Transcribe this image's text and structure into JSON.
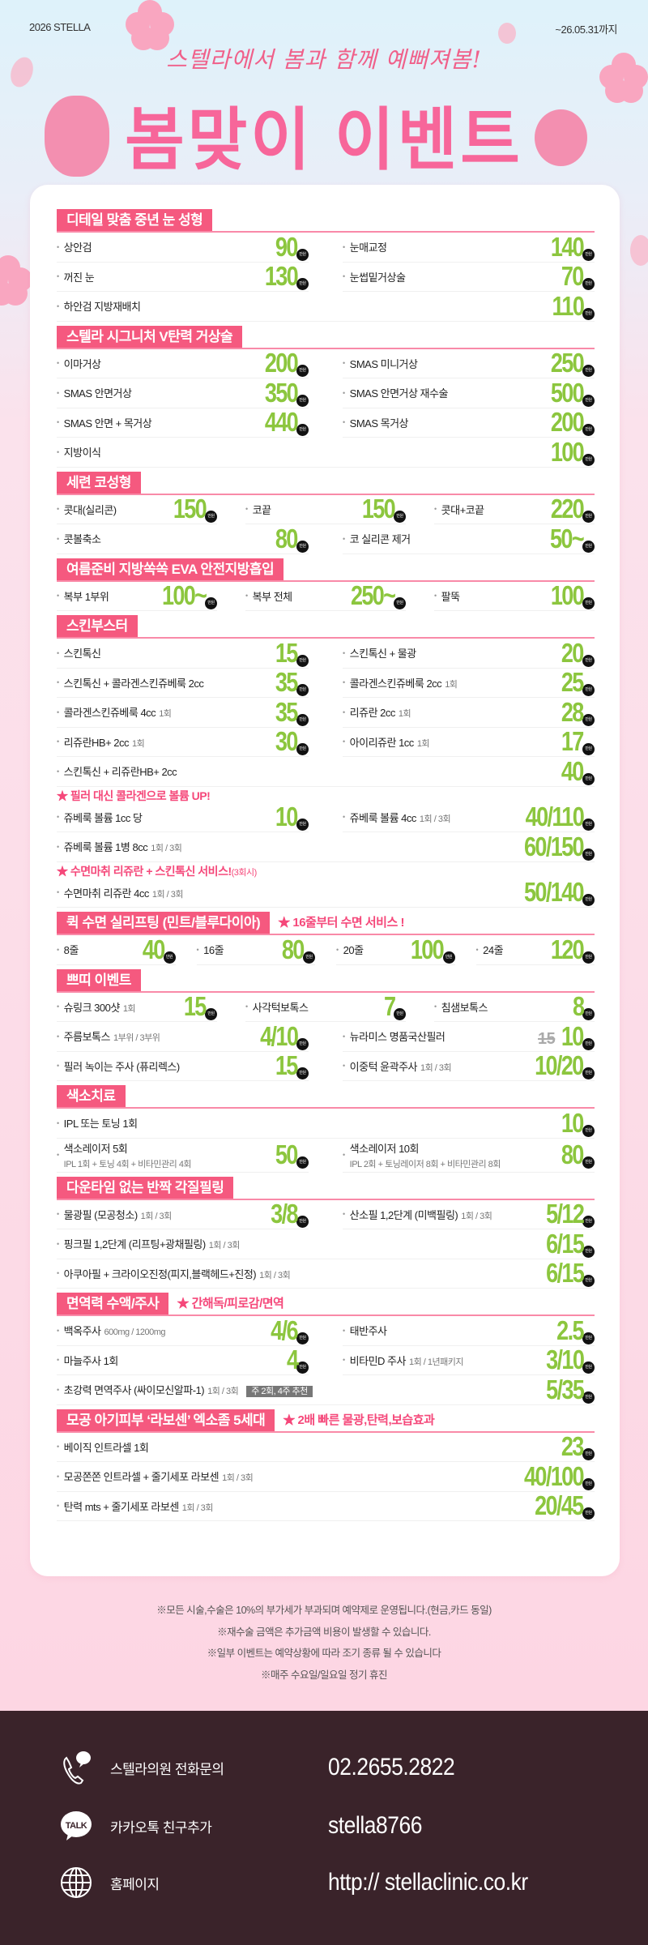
{
  "header": {
    "brand": "2026 STELLA",
    "period": "~26.05.31까지",
    "script": "스텔라에서 봄과 함께 예뻐져봄!",
    "title": "봄맞이 이벤트"
  },
  "unit": "만원",
  "colors": {
    "accent": "#f5597f",
    "price": "#8cc63e",
    "footer": "#3a232a"
  },
  "sections": [
    {
      "title": "디테일 맞춤 중년 눈 성형",
      "blocks": [
        {
          "cols": 2,
          "items": [
            {
              "label": "상안검",
              "price": "90"
            },
            {
              "label": "눈매교정",
              "price": "140"
            },
            {
              "label": "꺼진 눈",
              "price": "130"
            },
            {
              "label": "눈썹밑거상술",
              "price": "70"
            },
            {
              "label": "하안검 지방재배치",
              "price": "110",
              "full": true
            }
          ]
        }
      ]
    },
    {
      "title": "스텔라 시그니처 V탄력 거상술",
      "blocks": [
        {
          "cols": 2,
          "items": [
            {
              "label": "이마거상",
              "price": "200"
            },
            {
              "label": "SMAS 미니거상",
              "price": "250"
            },
            {
              "label": "SMAS 안면거상",
              "price": "350"
            },
            {
              "label": "SMAS 안면거상 재수술",
              "price": "500"
            },
            {
              "label": "SMAS 안면 + 목거상",
              "price": "440"
            },
            {
              "label": "SMAS 목거상",
              "price": "200"
            },
            {
              "label": "지방이식",
              "price": "100",
              "full": true
            }
          ]
        }
      ]
    },
    {
      "title": "세련 코성형",
      "blocks": [
        {
          "cols": 3,
          "items": [
            {
              "label": "콧대(실리콘)",
              "price": "150"
            },
            {
              "label": "코끝",
              "price": "150"
            },
            {
              "label": "콧대+코끝",
              "price": "220"
            }
          ]
        },
        {
          "cols": 2,
          "items": [
            {
              "label": "콧볼축소",
              "price": "80"
            },
            {
              "label": "코 실리콘 제거",
              "price": "50~"
            }
          ]
        }
      ]
    },
    {
      "title": "여름준비 지방쏙쏙 EVA 안전지방흡입",
      "blocks": [
        {
          "cols": 3,
          "items": [
            {
              "label": "복부 1부위",
              "price": "100~"
            },
            {
              "label": "복부 전체",
              "price": "250~"
            },
            {
              "label": "팔뚝",
              "price": "100"
            }
          ]
        }
      ]
    },
    {
      "title": "스킨부스터",
      "blocks": [
        {
          "cols": 2,
          "items": [
            {
              "label": "스킨톡신",
              "price": "15"
            },
            {
              "label": "스킨톡신 + 물광",
              "price": "20"
            },
            {
              "label": "스킨톡신 + 콜라겐스킨쥬베룩 2cc",
              "price": "35"
            },
            {
              "label": "콜라겐스킨쥬베룩 2cc",
              "sub": "1회",
              "price": "25"
            },
            {
              "label": "콜라겐스킨쥬베룩 4cc",
              "sub": "1회",
              "price": "35"
            },
            {
              "label": "리쥬란 2cc",
              "sub": "1회",
              "price": "28"
            },
            {
              "label": "리쥬란HB+ 2cc",
              "sub": "1회",
              "price": "30"
            },
            {
              "label": "아이리쥬란 1cc",
              "sub": "1회",
              "price": "17"
            },
            {
              "label": "스킨톡신 + 리쥬란HB+ 2cc",
              "price": "40",
              "full": true
            }
          ]
        },
        {
          "note": "★ 필러 대신 콜라겐으로 볼륨 UP!"
        },
        {
          "cols": 2,
          "items": [
            {
              "label": "쥬베룩 볼륨 1cc 당",
              "price": "10"
            },
            {
              "label": "쥬베룩 볼륨 4cc",
              "sub": "1회 / 3회",
              "price": "40/110"
            },
            {
              "label": "쥬베룩 볼륨 1병 8cc",
              "sub": "1회 / 3회",
              "price": "60/150",
              "full": true
            }
          ]
        },
        {
          "note": "★ 수면마취 리쥬란 + 스킨톡신 서비스!",
          "note_sub": "(3회시)"
        },
        {
          "cols": 2,
          "items": [
            {
              "label": "수면마취 리쥬란 4cc",
              "sub": "1회 / 3회",
              "price": "50/140",
              "full": true
            }
          ]
        }
      ]
    },
    {
      "title": "퀵 수면 실리프팅 (민트/블루다이아)",
      "note": "★ 16줄부터 수면 서비스 !",
      "blocks": [
        {
          "cols": 4,
          "items": [
            {
              "label": "8줄",
              "price": "40"
            },
            {
              "label": "16줄",
              "price": "80"
            },
            {
              "label": "20줄",
              "price": "100"
            },
            {
              "label": "24줄",
              "price": "120"
            }
          ]
        }
      ]
    },
    {
      "title": "쁘띠 이벤트",
      "blocks": [
        {
          "cols": 3,
          "items": [
            {
              "label": "슈링크 300샷",
              "sub": "1회",
              "price": "15"
            },
            {
              "label": "사각턱보톡스",
              "price": "7"
            },
            {
              "label": "침샘보톡스",
              "price": "8"
            }
          ]
        },
        {
          "cols": 2,
          "items": [
            {
              "label": "주름보톡스",
              "sub": "1부위 / 3부위",
              "price": "4/10"
            },
            {
              "label": "뉴라미스 명품국산필러",
              "old": "15",
              "price": "10"
            },
            {
              "label": "필러 녹이는 주사 (퓨리렉스)",
              "price": "15"
            },
            {
              "label": "이중턱 윤곽주사",
              "sub": "1회 / 3회",
              "price": "10/20"
            }
          ]
        }
      ]
    },
    {
      "title": "색소치료",
      "blocks": [
        {
          "cols": 2,
          "items": [
            {
              "label": "IPL 또는 토닝 1회",
              "price": "10",
              "full": true
            },
            {
              "label": "색소레이저 5회",
              "sub2": "IPL 1회 + 토닝 4회 + 비타민관리 4회",
              "price": "50"
            },
            {
              "label": "색소레이저 10회",
              "sub2": "IPL 2회 + 토닝레이저 8회 + 비타민관리 8회",
              "price": "80"
            }
          ]
        }
      ]
    },
    {
      "title": "다운타임 없는 반짝 각질필링",
      "blocks": [
        {
          "cols": 2,
          "items": [
            {
              "label": "물광필 (모공청소)",
              "sub": "1회 / 3회",
              "price": "3/8"
            },
            {
              "label": "산소필 1,2단계 (미백필링)",
              "sub": "1회 / 3회",
              "price": "5/12"
            },
            {
              "label": "핑크필 1,2단계 (리프팅+광채필링)",
              "sub": "1회 / 3회",
              "price": "6/15",
              "full": true
            },
            {
              "label": "아쿠아필 + 크라이오진정(피지,블랙헤드+진정)",
              "sub": "1회 / 3회",
              "price": "6/15",
              "full": true
            }
          ]
        }
      ]
    },
    {
      "title": "면역력 수액/주사",
      "note": "★ 간해독/피로감/면역",
      "blocks": [
        {
          "cols": 2,
          "items": [
            {
              "label": "백옥주사",
              "sub": "600mg / 1200mg",
              "price": "4/6"
            },
            {
              "label": "태반주사",
              "price": "2.5"
            },
            {
              "label": "마늘주사 1회",
              "price": "4"
            },
            {
              "label": "비타민D 주사",
              "sub": "1회 / 1년패키지",
              "price": "3/10"
            },
            {
              "label": "초강력 면역주사 (싸이모신알파-1)",
              "sub": "1회 / 3회",
              "tag": "주 2회, 4주 추천",
              "price": "5/35",
              "full": true
            }
          ]
        }
      ]
    },
    {
      "title": "모공 아기피부 ‘라보센’ 엑소좀 5세대",
      "note": "★ 2배 빠른 물광,탄력,보습효과",
      "blocks": [
        {
          "cols": 2,
          "items": [
            {
              "label": "베이직 인트라셀 1회",
              "price": "23",
              "full": true
            },
            {
              "label": "모공쫀쫀 인트라셀 + 줄기세포 라보센",
              "sub": "1회 / 3회",
              "price": "40/100",
              "full": true
            },
            {
              "label": "탄력 mts + 줄기세포 라보센",
              "sub": "1회 / 3회",
              "price": "20/45",
              "full": true
            }
          ]
        }
      ]
    }
  ],
  "notes": [
    "※모든 시술,수술은 10%의 부가세가 부과되며 예약제로 운영됩니다.(현금,카드 동일)",
    "※재수술 금액은 추가금액 비용이 발생할 수 있습니다.",
    "※일부 이벤트는 예약상황에 따라 조기 종류 될 수 있습니다",
    "※매주 수요일/일요일 정기 휴진"
  ],
  "footer": [
    {
      "icon": "phone-chat-icon",
      "label": "스텔라의원 전화문의",
      "value": "02.2655.2822"
    },
    {
      "icon": "kakaotalk-icon",
      "icon_text": "TALK",
      "label": "카카오톡 친구추가",
      "value": "stella8766"
    },
    {
      "icon": "globe-icon",
      "label": "홈페이지",
      "value": "http:// stellaclinic.co.kr"
    }
  ]
}
